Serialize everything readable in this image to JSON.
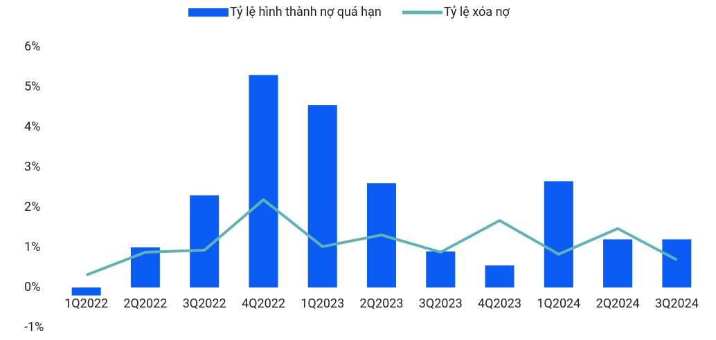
{
  "chart_data": {
    "type": "bar",
    "categories": [
      "1Q2022",
      "2Q2022",
      "3Q2022",
      "4Q2022",
      "1Q2023",
      "2Q2023",
      "3Q2023",
      "4Q2023",
      "1Q2024",
      "2Q2024",
      "3Q2024"
    ],
    "series": [
      {
        "name": "Tỷ lệ hình thành nợ quá hạn",
        "type": "bar",
        "color": "#0a5cf5",
        "values": [
          -0.2,
          1.0,
          2.3,
          5.3,
          4.55,
          2.6,
          0.9,
          0.55,
          2.65,
          1.2,
          1.2
        ]
      },
      {
        "name": "Tỷ lệ xóa nợ",
        "type": "line",
        "color": "#5fb3b3",
        "values": [
          0.31,
          0.88,
          0.93,
          2.19,
          1.02,
          1.31,
          0.88,
          1.67,
          0.83,
          1.47,
          0.69
        ]
      }
    ],
    "ylim": [
      -1,
      6
    ],
    "yticks": [
      {
        "value": -1,
        "label": "-1%"
      },
      {
        "value": 0,
        "label": "0%"
      },
      {
        "value": 1,
        "label": "1%"
      },
      {
        "value": 2,
        "label": "2%"
      },
      {
        "value": 3,
        "label": "3%"
      },
      {
        "value": 4,
        "label": "4%"
      },
      {
        "value": 5,
        "label": "5%"
      },
      {
        "value": 6,
        "label": "6%"
      }
    ],
    "legend": "top"
  }
}
